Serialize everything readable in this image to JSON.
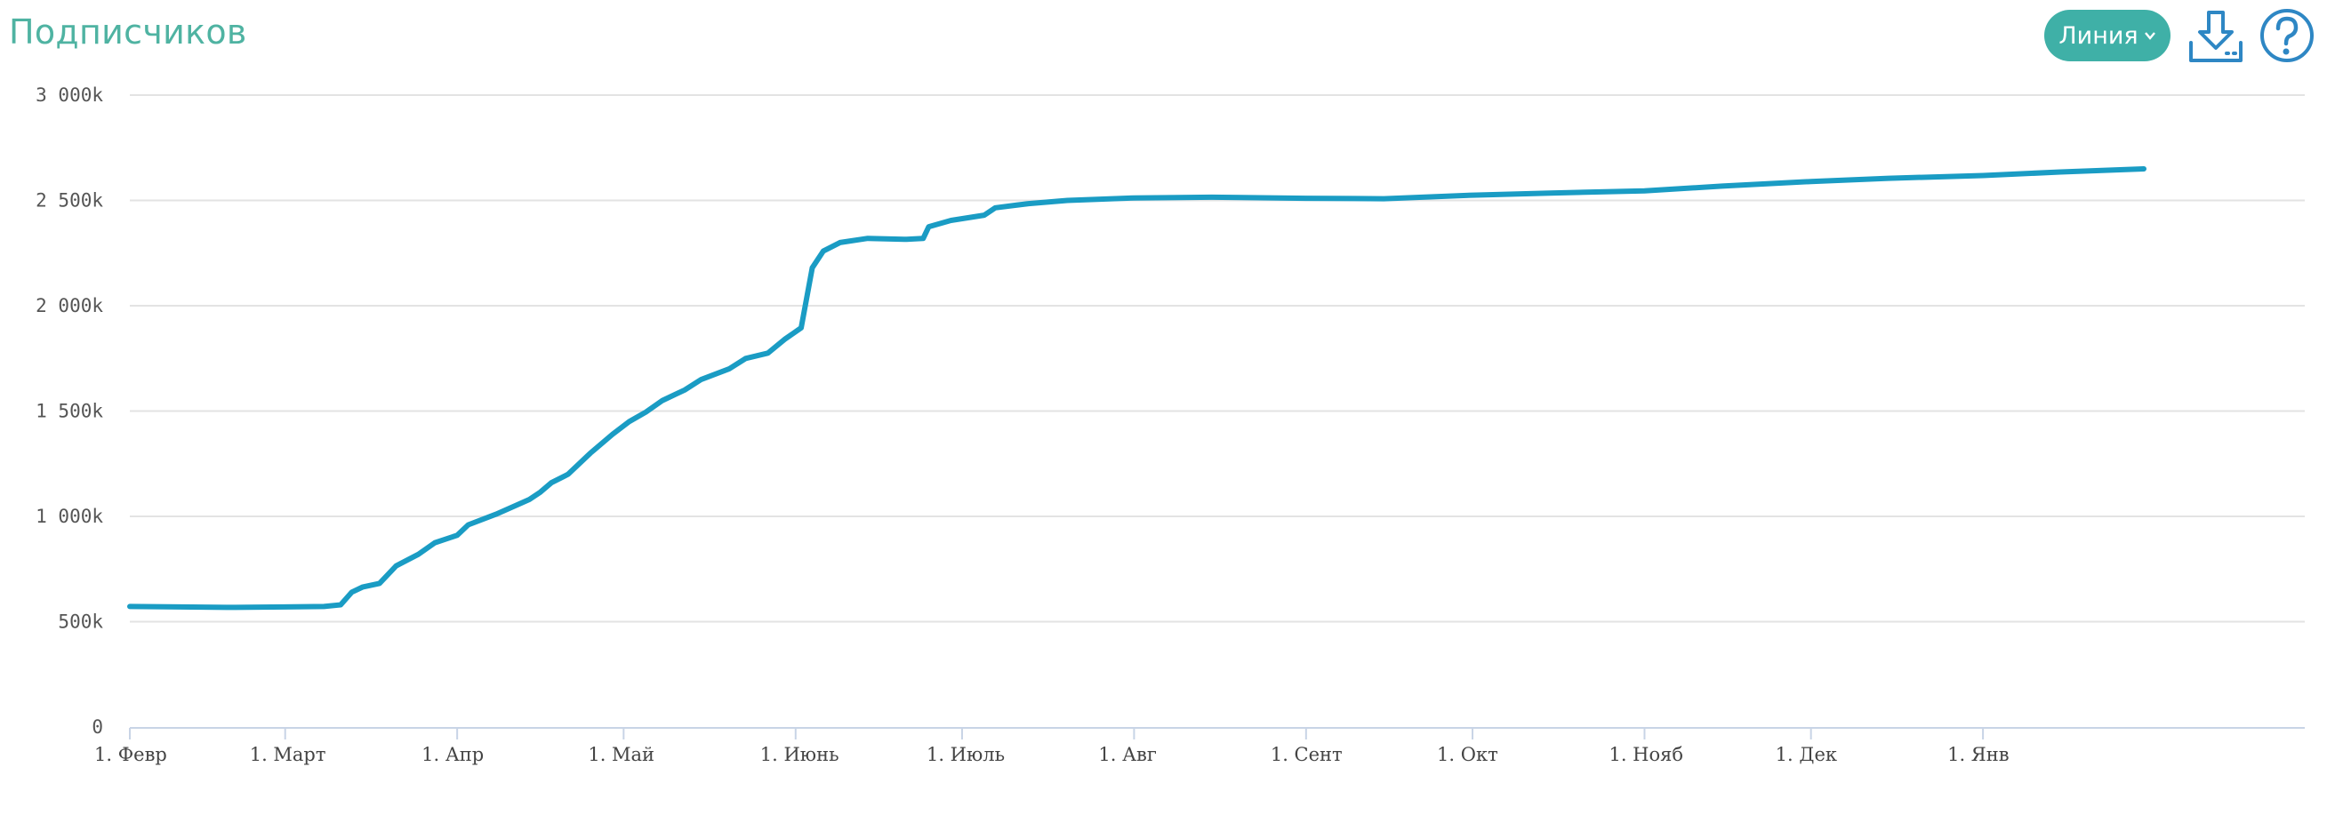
{
  "header": {
    "title": "Подписчиков",
    "chart_type_button": "Линия",
    "download_icon": "download-icon",
    "help_icon": "help-icon"
  },
  "colors": {
    "title": "#4fb3a2",
    "button": "#3fb0a7",
    "line": "#1a9cc4",
    "icons": "#2e87c4",
    "grid": "#e3e3e3"
  },
  "chart_data": {
    "type": "line",
    "title": "Подписчиков",
    "xlabel": "",
    "ylabel": "",
    "ylim": [
      0,
      3000000
    ],
    "grid": true,
    "legend": "none",
    "y_ticks": [
      {
        "value": 0,
        "label": "0"
      },
      {
        "value": 500000,
        "label": "500k"
      },
      {
        "value": 1000000,
        "label": "1 000k"
      },
      {
        "value": 1500000,
        "label": "1 500k"
      },
      {
        "value": 2000000,
        "label": "2 000k"
      },
      {
        "value": 2500000,
        "label": "2 500k"
      },
      {
        "value": 3000000,
        "label": "3 000k"
      }
    ],
    "x_ticks": [
      {
        "date": "02-01",
        "label": "1. Февр"
      },
      {
        "date": "03-01",
        "label": "1. Март"
      },
      {
        "date": "04-01",
        "label": "1. Апр"
      },
      {
        "date": "05-01",
        "label": "1. Май"
      },
      {
        "date": "06-01",
        "label": "1. Июнь"
      },
      {
        "date": "07-01",
        "label": "1. Июль"
      },
      {
        "date": "08-01",
        "label": "1. Авг"
      },
      {
        "date": "09-01",
        "label": "1. Сент"
      },
      {
        "date": "10-01",
        "label": "1. Окт"
      },
      {
        "date": "11-01",
        "label": "1. Нояб"
      },
      {
        "date": "12-01",
        "label": "1. Дек"
      },
      {
        "date": "01-01",
        "label": "1. Янв"
      }
    ],
    "series": [
      {
        "values": [
          [
            "02-01",
            572000
          ],
          [
            "02-10",
            570000
          ],
          [
            "02-20",
            568000
          ],
          [
            "03-01",
            570000
          ],
          [
            "03-08",
            572000
          ],
          [
            "03-11",
            580000
          ],
          [
            "03-13",
            640000
          ],
          [
            "03-15",
            665000
          ],
          [
            "03-18",
            682000
          ],
          [
            "03-21",
            765000
          ],
          [
            "03-25",
            820000
          ],
          [
            "03-28",
            875000
          ],
          [
            "04-01",
            910000
          ],
          [
            "04-03",
            960000
          ],
          [
            "04-08",
            1010000
          ],
          [
            "04-14",
            1080000
          ],
          [
            "04-16",
            1115000
          ],
          [
            "04-18",
            1160000
          ],
          [
            "04-21",
            1200000
          ],
          [
            "04-25",
            1300000
          ],
          [
            "04-29",
            1390000
          ],
          [
            "05-02",
            1450000
          ],
          [
            "05-05",
            1495000
          ],
          [
            "05-08",
            1550000
          ],
          [
            "05-12",
            1600000
          ],
          [
            "05-15",
            1650000
          ],
          [
            "05-20",
            1700000
          ],
          [
            "05-23",
            1750000
          ],
          [
            "05-27",
            1775000
          ],
          [
            "05-30",
            1840000
          ],
          [
            "06-02",
            1895000
          ],
          [
            "06-04",
            2180000
          ],
          [
            "06-06",
            2260000
          ],
          [
            "06-09",
            2300000
          ],
          [
            "06-14",
            2320000
          ],
          [
            "06-21",
            2315000
          ],
          [
            "06-24",
            2320000
          ],
          [
            "06-25",
            2375000
          ],
          [
            "06-29",
            2405000
          ],
          [
            "07-05",
            2430000
          ],
          [
            "07-07",
            2465000
          ],
          [
            "07-13",
            2485000
          ],
          [
            "07-20",
            2500000
          ],
          [
            "08-01",
            2512000
          ],
          [
            "08-15",
            2515000
          ],
          [
            "09-01",
            2510000
          ],
          [
            "09-15",
            2508000
          ],
          [
            "10-01",
            2525000
          ],
          [
            "10-15",
            2535000
          ],
          [
            "11-01",
            2545000
          ],
          [
            "11-15",
            2568000
          ],
          [
            "12-01",
            2590000
          ],
          [
            "12-15",
            2605000
          ],
          [
            "01-01",
            2618000
          ],
          [
            "01-15",
            2635000
          ],
          [
            "01-30",
            2650000
          ]
        ]
      }
    ]
  }
}
